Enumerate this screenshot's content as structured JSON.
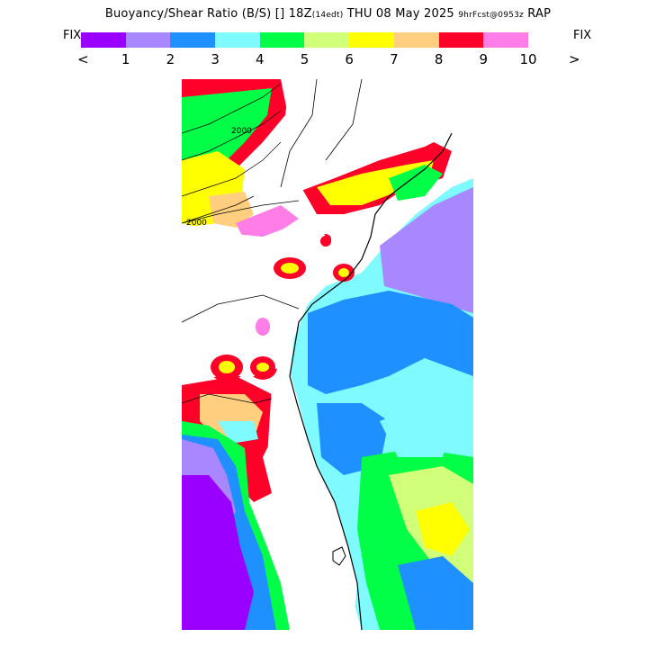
{
  "title": {
    "main": "Buoyancy/Shear Ratio (B/S)",
    "glyph": "[]",
    "time": "18Z",
    "tz": "(14edt)",
    "date": "THU 08 May 2025",
    "forecast": "9hrFcst@0953z",
    "model": "RAP"
  },
  "legend": {
    "fix_left": "FIX",
    "fix_right": "FIX",
    "arrow_left": "<",
    "arrow_right": ">",
    "ticks": [
      "1",
      "2",
      "3",
      "4",
      "5",
      "6",
      "7",
      "8",
      "9",
      "10"
    ],
    "colors": [
      "#9a00ff",
      "#a887ff",
      "#1e90ff",
      "#7ffaff",
      "#00ff46",
      "#d2ff7a",
      "#ffff00",
      "#ffcf7f",
      "#ff0028",
      "#ff7de6"
    ]
  },
  "map": {
    "contour_labels": [
      "2000",
      "2000"
    ]
  }
}
